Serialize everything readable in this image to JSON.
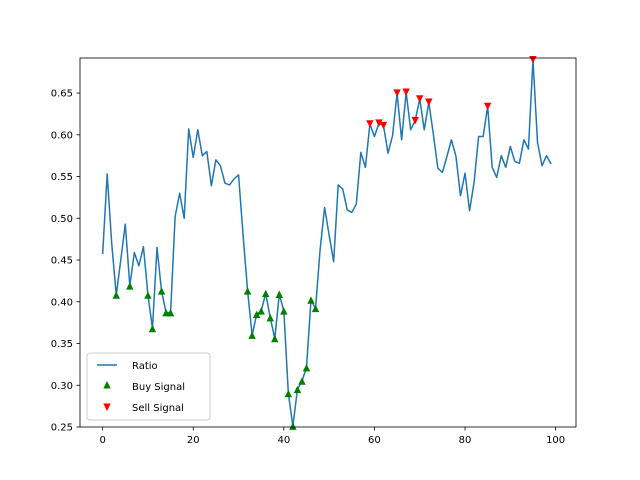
{
  "chart_data": {
    "type": "line",
    "title": "",
    "xlabel": "",
    "ylabel": "",
    "xlim": [
      -5,
      104.5
    ],
    "ylim": [
      0.25,
      0.692
    ],
    "x_ticks": [
      0,
      20,
      40,
      60,
      80,
      100
    ],
    "y_ticks": [
      0.25,
      0.3,
      0.35,
      0.4,
      0.45,
      0.5,
      0.55,
      0.6,
      0.65
    ],
    "y_tick_format": 2,
    "grid": false,
    "legend_position": "lower-left",
    "legend": [
      {
        "key": "ratio",
        "label": "Ratio"
      },
      {
        "key": "buy",
        "label": "Buy Signal"
      },
      {
        "key": "sell",
        "label": "Sell Signal"
      }
    ],
    "series": [
      {
        "name": "Ratio",
        "color": "#1f77b4",
        "x": [
          0,
          1,
          2,
          3,
          4,
          5,
          6,
          7,
          8,
          9,
          10,
          11,
          12,
          13,
          14,
          15,
          16,
          17,
          18,
          19,
          20,
          21,
          22,
          23,
          24,
          25,
          26,
          27,
          28,
          29,
          30,
          31,
          32,
          33,
          34,
          35,
          36,
          37,
          38,
          39,
          40,
          41,
          42,
          43,
          44,
          45,
          46,
          47,
          48,
          49,
          50,
          51,
          52,
          53,
          54,
          55,
          56,
          57,
          58,
          59,
          60,
          61,
          62,
          63,
          64,
          65,
          66,
          67,
          68,
          69,
          70,
          71,
          72,
          73,
          74,
          75,
          76,
          77,
          78,
          79,
          80,
          81,
          82,
          83,
          84,
          85,
          86,
          87,
          88,
          89,
          90,
          91,
          92,
          93,
          94,
          95,
          96,
          97,
          98,
          99
        ],
        "values": [
          0.457,
          0.553,
          0.47,
          0.408,
          0.45,
          0.493,
          0.419,
          0.459,
          0.443,
          0.466,
          0.408,
          0.368,
          0.465,
          0.413,
          0.387,
          0.387,
          0.502,
          0.53,
          0.5,
          0.607,
          0.573,
          0.606,
          0.575,
          0.58,
          0.539,
          0.57,
          0.563,
          0.542,
          0.54,
          0.547,
          0.552,
          0.48,
          0.413,
          0.36,
          0.385,
          0.389,
          0.41,
          0.381,
          0.356,
          0.409,
          0.389,
          0.29,
          0.251,
          0.295,
          0.305,
          0.321,
          0.402,
          0.392,
          0.462,
          0.513,
          0.48,
          0.448,
          0.54,
          0.535,
          0.51,
          0.507,
          0.517,
          0.579,
          0.561,
          0.613,
          0.598,
          0.614,
          0.611,
          0.578,
          0.599,
          0.65,
          0.594,
          0.651,
          0.606,
          0.617,
          0.643,
          0.606,
          0.639,
          0.601,
          0.56,
          0.555,
          0.574,
          0.594,
          0.574,
          0.527,
          0.554,
          0.509,
          0.543,
          0.598,
          0.598,
          0.634,
          0.561,
          0.549,
          0.575,
          0.561,
          0.586,
          0.568,
          0.566,
          0.594,
          0.583,
          0.69,
          0.591,
          0.563,
          0.575,
          0.565
        ]
      },
      {
        "name": "Buy Signal",
        "color": "#008000",
        "marker": "triangle-up",
        "x": [
          3,
          6,
          10,
          11,
          13,
          14,
          15,
          32,
          33,
          34,
          35,
          36,
          37,
          38,
          39,
          40,
          41,
          42,
          43,
          44,
          45,
          46,
          47
        ],
        "values": [
          0.408,
          0.419,
          0.408,
          0.368,
          0.413,
          0.387,
          0.387,
          0.413,
          0.36,
          0.385,
          0.389,
          0.41,
          0.381,
          0.356,
          0.409,
          0.389,
          0.29,
          0.251,
          0.295,
          0.305,
          0.321,
          0.402,
          0.392
        ]
      },
      {
        "name": "Sell Signal",
        "color": "#ff0000",
        "marker": "triangle-down",
        "x": [
          59,
          61,
          62,
          65,
          67,
          69,
          70,
          72,
          85,
          95
        ],
        "values": [
          0.613,
          0.614,
          0.611,
          0.65,
          0.651,
          0.617,
          0.643,
          0.639,
          0.634,
          0.69
        ]
      }
    ]
  }
}
